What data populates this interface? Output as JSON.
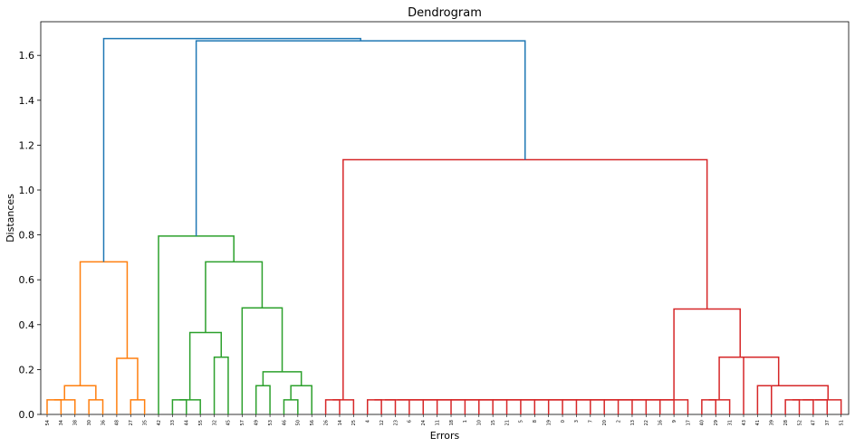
{
  "chart_data": {
    "type": "dendrogram",
    "title": "Dendrogram",
    "xlabel": "Errors",
    "ylabel": "Distances",
    "ylim": [
      0,
      1.75
    ],
    "yticks": [
      "0.0",
      "0.2",
      "0.4",
      "0.6",
      "0.8",
      "1.0",
      "1.2",
      "1.4",
      "1.6"
    ],
    "grid": false,
    "leaves": [
      "54",
      "34",
      "38",
      "30",
      "36",
      "48",
      "27",
      "35",
      "42",
      "33",
      "44",
      "55",
      "32",
      "45",
      "57",
      "49",
      "53",
      "46",
      "50",
      "56",
      "26",
      "14",
      "25",
      "4",
      "12",
      "23",
      "6",
      "24",
      "11",
      "18",
      "1",
      "10",
      "15",
      "21",
      "5",
      "8",
      "19",
      "0",
      "3",
      "7",
      "20",
      "2",
      "13",
      "22",
      "16",
      "9",
      "17",
      "40",
      "29",
      "31",
      "43",
      "41",
      "39",
      "28",
      "52",
      "47",
      "37",
      "51"
    ],
    "colors": {
      "above_threshold": "#1f77b4",
      "cluster_1": "#ff7f0e",
      "cluster_2": "#2ca02c",
      "cluster_3": "#d62728"
    },
    "merges": [
      {
        "left": 0,
        "right": 1,
        "height": 0.065,
        "color": "cluster_1"
      },
      {
        "left": "m0",
        "right": 2,
        "height": 0.065,
        "color": "cluster_1"
      },
      {
        "left": 3,
        "right": 4,
        "height": 0.065,
        "color": "cluster_1"
      },
      {
        "left": "m1",
        "right": "m2",
        "height": 0.128,
        "color": "cluster_1"
      },
      {
        "left": 6,
        "right": 7,
        "height": 0.065,
        "color": "cluster_1"
      },
      {
        "left": 5,
        "right": "m4",
        "height": 0.25,
        "color": "cluster_1"
      },
      {
        "left": "m3",
        "right": "m5",
        "height": 0.68,
        "color": "cluster_1"
      },
      {
        "left": 9,
        "right": 10,
        "height": 0.065,
        "color": "cluster_2"
      },
      {
        "left": "m7",
        "right": 11,
        "height": 0.065,
        "color": "cluster_2"
      },
      {
        "left": 12,
        "right": 13,
        "height": 0.255,
        "color": "cluster_2"
      },
      {
        "left": "m8",
        "right": "m9",
        "height": 0.365,
        "color": "cluster_2"
      },
      {
        "left": 15,
        "right": 16,
        "height": 0.128,
        "color": "cluster_2"
      },
      {
        "left": 17,
        "right": 18,
        "height": 0.065,
        "color": "cluster_2"
      },
      {
        "left": "m12",
        "right": 19,
        "height": 0.128,
        "color": "cluster_2"
      },
      {
        "left": "m11",
        "right": "m13",
        "height": 0.19,
        "color": "cluster_2"
      },
      {
        "left": 14,
        "right": "m14",
        "height": 0.475,
        "color": "cluster_2"
      },
      {
        "left": "m10",
        "right": "m15",
        "height": 0.68,
        "color": "cluster_2"
      },
      {
        "left": 8,
        "right": "m16",
        "height": 0.795,
        "color": "cluster_2"
      },
      {
        "left": 20,
        "right": 21,
        "height": 0.065,
        "color": "cluster_3"
      },
      {
        "left": "m18",
        "right": 22,
        "height": 0.065,
        "color": "cluster_3"
      },
      {
        "left": 23,
        "right": 24,
        "height": 0.065,
        "color": "cluster_3"
      },
      {
        "left": "m20",
        "right": 25,
        "height": 0.065,
        "color": "cluster_3"
      },
      {
        "left": "m21",
        "right": 26,
        "height": 0.065,
        "color": "cluster_3"
      },
      {
        "left": "m22",
        "right": 27,
        "height": 0.065,
        "color": "cluster_3"
      },
      {
        "left": "m23",
        "right": 28,
        "height": 0.065,
        "color": "cluster_3"
      },
      {
        "left": "m24",
        "right": 29,
        "height": 0.065,
        "color": "cluster_3"
      },
      {
        "left": "m25",
        "right": 30,
        "height": 0.065,
        "color": "cluster_3"
      },
      {
        "left": "m26",
        "right": 31,
        "height": 0.065,
        "color": "cluster_3"
      },
      {
        "left": "m27",
        "right": 32,
        "height": 0.065,
        "color": "cluster_3"
      },
      {
        "left": "m28",
        "right": 33,
        "height": 0.065,
        "color": "cluster_3"
      },
      {
        "left": "m29",
        "right": 34,
        "height": 0.065,
        "color": "cluster_3"
      },
      {
        "left": "m30",
        "right": 35,
        "height": 0.065,
        "color": "cluster_3"
      },
      {
        "left": "m31",
        "right": 36,
        "height": 0.065,
        "color": "cluster_3"
      },
      {
        "left": "m32",
        "right": 37,
        "height": 0.065,
        "color": "cluster_3"
      },
      {
        "left": "m33",
        "right": 38,
        "height": 0.065,
        "color": "cluster_3"
      },
      {
        "left": "m34",
        "right": 39,
        "height": 0.065,
        "color": "cluster_3"
      },
      {
        "left": "m35",
        "right": 40,
        "height": 0.065,
        "color": "cluster_3"
      },
      {
        "left": "m36",
        "right": 41,
        "height": 0.065,
        "color": "cluster_3"
      },
      {
        "left": "m37",
        "right": 42,
        "height": 0.065,
        "color": "cluster_3"
      },
      {
        "left": "m38",
        "right": 43,
        "height": 0.065,
        "color": "cluster_3"
      },
      {
        "left": "m39",
        "right": 44,
        "height": 0.065,
        "color": "cluster_3"
      },
      {
        "left": "m40",
        "right": 45,
        "height": 0.065,
        "color": "cluster_3"
      },
      {
        "left": "m41",
        "right": 46,
        "height": 0.065,
        "color": "cluster_3"
      },
      {
        "left": 47,
        "right": 48,
        "height": 0.065,
        "color": "cluster_3"
      },
      {
        "left": "m43",
        "right": 49,
        "height": 0.065,
        "color": "cluster_3"
      },
      {
        "left": 53,
        "right": 54,
        "height": 0.065,
        "color": "cluster_3"
      },
      {
        "left": "m45",
        "right": 55,
        "height": 0.065,
        "color": "cluster_3"
      },
      {
        "left": "m46",
        "right": 56,
        "height": 0.065,
        "color": "cluster_3"
      },
      {
        "left": "m47",
        "right": 57,
        "height": 0.065,
        "color": "cluster_3"
      },
      {
        "left": 52,
        "right": "m48",
        "height": 0.128,
        "color": "cluster_3"
      },
      {
        "left": 51,
        "right": "m49",
        "height": 0.128,
        "color": "cluster_3"
      },
      {
        "left": 50,
        "right": "m50",
        "height": 0.255,
        "color": "cluster_3"
      },
      {
        "left": "m44",
        "right": "m51",
        "height": 0.255,
        "color": "cluster_3"
      },
      {
        "left": "m42",
        "right": "m52",
        "height": 0.47,
        "color": "cluster_3"
      },
      {
        "left": "m19",
        "right": "m53",
        "height": 1.135,
        "color": "cluster_3"
      },
      {
        "left": "m17",
        "right": "m54",
        "height": 1.665,
        "color": "above_threshold"
      },
      {
        "left": "m6",
        "right": "m55",
        "height": 1.675,
        "color": "above_threshold"
      }
    ]
  }
}
